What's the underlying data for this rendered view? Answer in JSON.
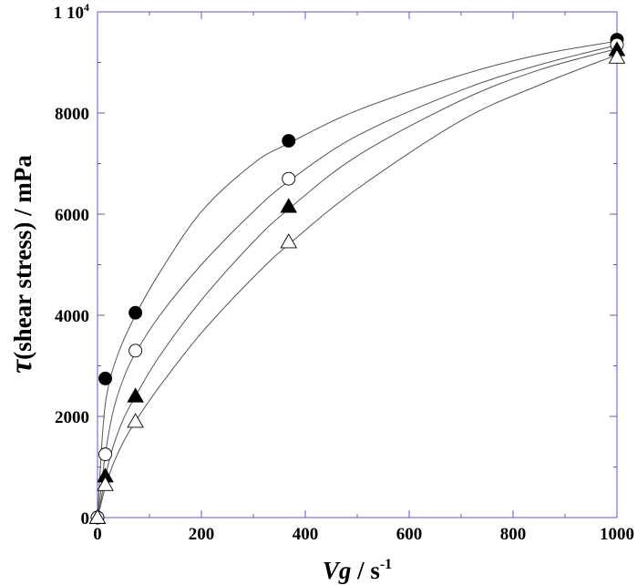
{
  "chart_data": {
    "type": "scatter",
    "title": "",
    "xlabel_main": "Vg",
    "xlabel_unit": " / s",
    "xlabel_exp": "-1",
    "ylabel_symbol": "τ",
    "ylabel_text": "(shear stress) / mPa",
    "xlim": [
      0,
      1000
    ],
    "ylim": [
      0,
      10000
    ],
    "x_ticks": [
      "0",
      "200",
      "400",
      "600",
      "800",
      "1000"
    ],
    "y_ticks": [
      "0",
      "2000",
      "4000",
      "6000",
      "8000"
    ],
    "y_top_label": "1 10",
    "y_top_exp": "4",
    "grid": false,
    "series": [
      {
        "marker": "filled-circle",
        "color": "#000000",
        "points": [
          [
            0,
            0
          ],
          [
            15,
            2750
          ],
          [
            73,
            4050
          ],
          [
            368,
            7450
          ],
          [
            1000,
            9450
          ]
        ],
        "curve": [
          [
            0,
            0
          ],
          [
            10,
            1700
          ],
          [
            20,
            2550
          ],
          [
            40,
            3250
          ],
          [
            73,
            4000
          ],
          [
            120,
            4850
          ],
          [
            200,
            6050
          ],
          [
            300,
            7000
          ],
          [
            368,
            7400
          ],
          [
            500,
            8050
          ],
          [
            700,
            8750
          ],
          [
            850,
            9150
          ],
          [
            1000,
            9420
          ]
        ]
      },
      {
        "marker": "open-circle",
        "color": "#000000",
        "points": [
          [
            0,
            0
          ],
          [
            15,
            1250
          ],
          [
            73,
            3300
          ],
          [
            368,
            6700
          ],
          [
            1000,
            9350
          ]
        ],
        "curve": [
          [
            0,
            0
          ],
          [
            5,
            400
          ],
          [
            15,
            1250
          ],
          [
            30,
            2100
          ],
          [
            50,
            2750
          ],
          [
            73,
            3250
          ],
          [
            120,
            4000
          ],
          [
            200,
            5000
          ],
          [
            300,
            6050
          ],
          [
            368,
            6650
          ],
          [
            500,
            7550
          ],
          [
            700,
            8450
          ],
          [
            850,
            8950
          ],
          [
            1000,
            9340
          ]
        ]
      },
      {
        "marker": "filled-triangle",
        "color": "#000000",
        "points": [
          [
            0,
            0
          ],
          [
            15,
            820
          ],
          [
            73,
            2400
          ],
          [
            368,
            6150
          ],
          [
            1000,
            9250
          ]
        ],
        "curve": [
          [
            0,
            0
          ],
          [
            5,
            250
          ],
          [
            15,
            800
          ],
          [
            30,
            1400
          ],
          [
            50,
            1950
          ],
          [
            73,
            2400
          ],
          [
            120,
            3200
          ],
          [
            200,
            4300
          ],
          [
            300,
            5450
          ],
          [
            368,
            6100
          ],
          [
            500,
            7150
          ],
          [
            700,
            8250
          ],
          [
            850,
            8850
          ],
          [
            1000,
            9270
          ]
        ]
      },
      {
        "marker": "open-triangle",
        "color": "#000000",
        "points": [
          [
            0,
            0
          ],
          [
            15,
            650
          ],
          [
            73,
            1900
          ],
          [
            368,
            5450
          ],
          [
            1000,
            9100
          ]
        ],
        "curve": [
          [
            0,
            0
          ],
          [
            5,
            200
          ],
          [
            15,
            600
          ],
          [
            30,
            1050
          ],
          [
            50,
            1500
          ],
          [
            73,
            1900
          ],
          [
            120,
            2600
          ],
          [
            200,
            3650
          ],
          [
            300,
            4750
          ],
          [
            368,
            5400
          ],
          [
            500,
            6500
          ],
          [
            700,
            7850
          ],
          [
            850,
            8550
          ],
          [
            1000,
            9150
          ]
        ]
      }
    ]
  }
}
